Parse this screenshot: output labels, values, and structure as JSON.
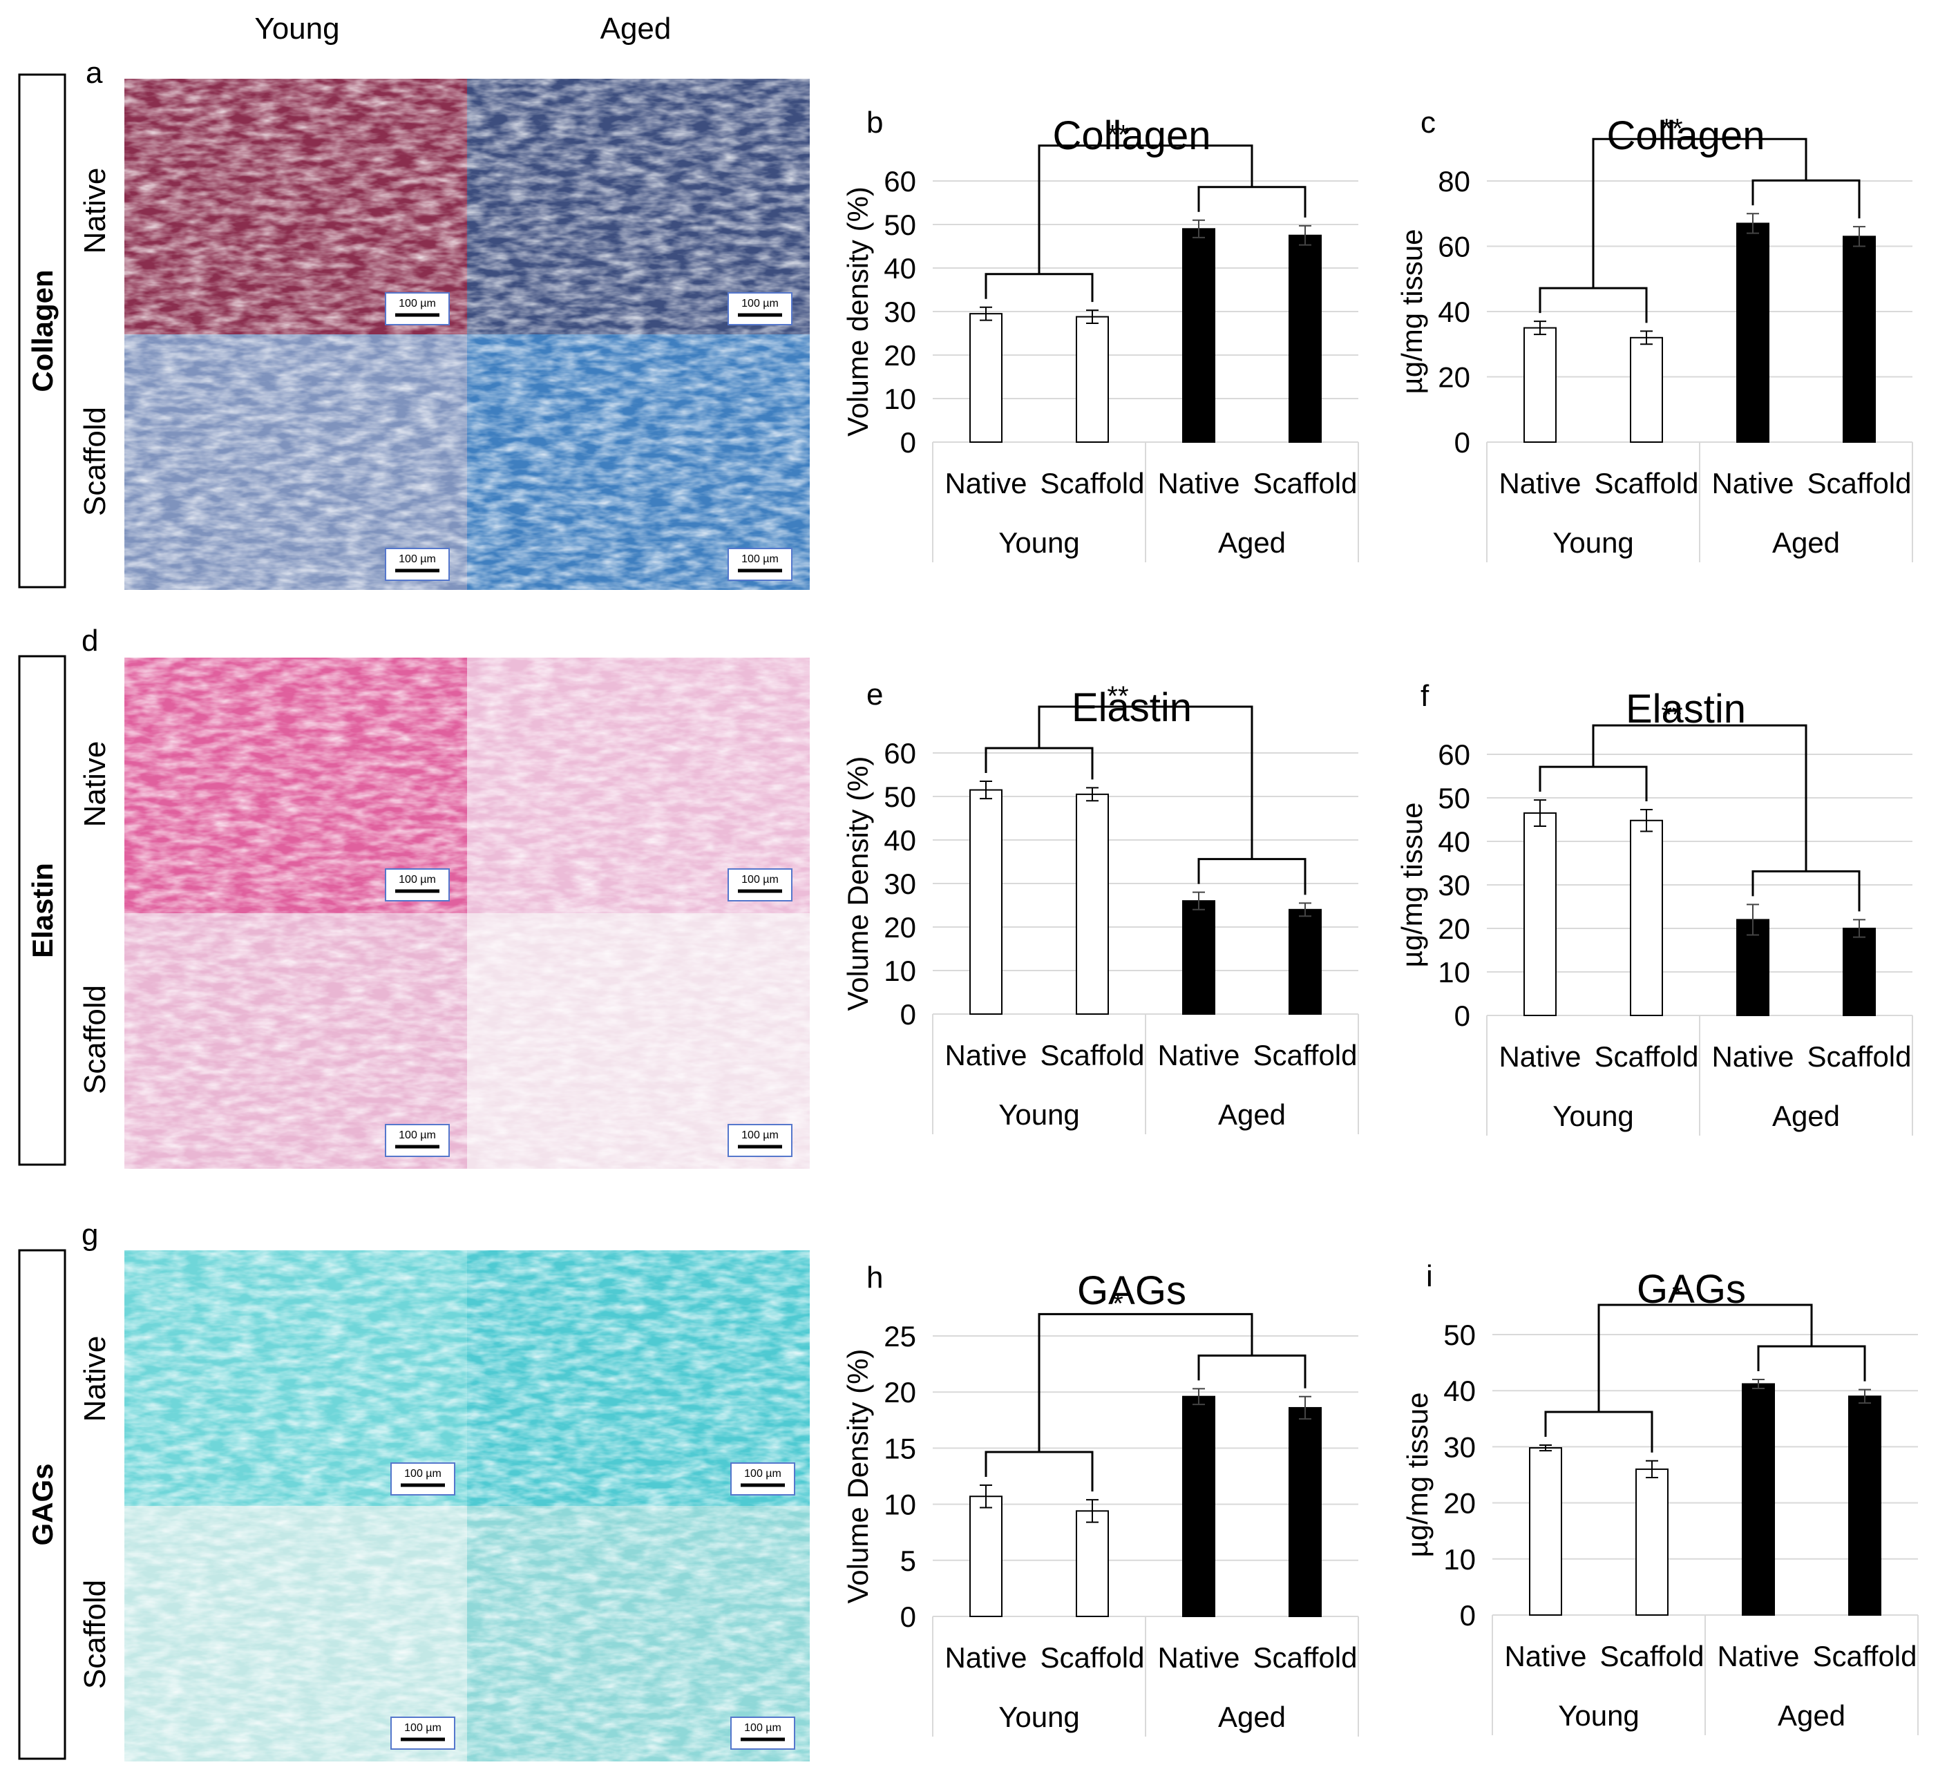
{
  "column_headers": [
    "Young",
    "Aged"
  ],
  "row_headers": [
    "Native",
    "Scaffold"
  ],
  "scale_bar_label": "100 µm",
  "stain_panels": [
    {
      "letter": "a",
      "section": "Collagen",
      "colors": [
        "#8a2e4e",
        "#3d4e7e",
        "#7f93bd",
        "#3f7fc0"
      ]
    },
    {
      "letter": "d",
      "section": "Elastin",
      "colors": [
        "#e0609e",
        "#ecbcd8",
        "#e9b6d3",
        "#f3e3ec"
      ]
    },
    {
      "letter": "g",
      "section": "GAGs",
      "colors": [
        "#6fd6d9",
        "#4fcad2",
        "#c3e8e6",
        "#8fd8d8"
      ]
    }
  ],
  "chart_data": [
    {
      "letter": "b",
      "type": "bar",
      "title": "Collagen",
      "ylabel": "Volume density  (%)",
      "ylim": [
        0,
        60
      ],
      "yticks": [
        0,
        10,
        20,
        30,
        40,
        50,
        60
      ],
      "categories": [
        "Native",
        "Scaffold",
        "Native",
        "Scaffold"
      ],
      "groups": [
        "Young",
        "Aged"
      ],
      "values": [
        29.5,
        28.8,
        49,
        47.5
      ],
      "errors": [
        1.5,
        1.5,
        2,
        2.2
      ],
      "significance": "**"
    },
    {
      "letter": "c",
      "type": "bar",
      "title": "Collagen",
      "ylabel": "µg/mg tissue",
      "ylim": [
        0,
        80
      ],
      "yticks": [
        0,
        20,
        40,
        60,
        80
      ],
      "categories": [
        "Native",
        "Scaffold",
        "Native",
        "Scaffold"
      ],
      "groups": [
        "Young",
        "Aged"
      ],
      "values": [
        35,
        32,
        67,
        63
      ],
      "errors": [
        2,
        2,
        3,
        3
      ],
      "significance": "**"
    },
    {
      "letter": "e",
      "type": "bar",
      "title": "Elastin",
      "ylabel": "Volume Density (%)",
      "ylim": [
        0,
        60
      ],
      "yticks": [
        0,
        10,
        20,
        30,
        40,
        50,
        60
      ],
      "categories": [
        "Native",
        "Scaffold",
        "Native",
        "Scaffold"
      ],
      "groups": [
        "Young",
        "Aged"
      ],
      "values": [
        51.5,
        50.5,
        26,
        24
      ],
      "errors": [
        2,
        1.5,
        2,
        1.5
      ],
      "significance": "**"
    },
    {
      "letter": "f",
      "type": "bar",
      "title": "Elastin",
      "ylabel": "µg/mg tissue",
      "ylim": [
        0,
        60
      ],
      "yticks": [
        0,
        10,
        20,
        30,
        40,
        50,
        60
      ],
      "categories": [
        "Native",
        "Scaffold",
        "Native",
        "Scaffold"
      ],
      "groups": [
        "Young",
        "Aged"
      ],
      "values": [
        46.5,
        44.8,
        22,
        20
      ],
      "errors": [
        3,
        2.5,
        3.5,
        2
      ],
      "significance": "**"
    },
    {
      "letter": "h",
      "type": "bar",
      "title": "GAGs",
      "ylabel": "Volume Density (%)",
      "ylim": [
        0,
        25
      ],
      "yticks": [
        0,
        5,
        10,
        15,
        20,
        25
      ],
      "categories": [
        "Native",
        "Scaffold",
        "Native",
        "Scaffold"
      ],
      "groups": [
        "Young",
        "Aged"
      ],
      "values": [
        10.7,
        9.4,
        19.6,
        18.6
      ],
      "errors": [
        1,
        1,
        0.7,
        1
      ],
      "significance": "*"
    },
    {
      "letter": "i",
      "type": "bar",
      "title": "GAGs",
      "ylabel": "µg/mg tissue",
      "ylim": [
        0,
        50
      ],
      "yticks": [
        0,
        10,
        20,
        30,
        40,
        50
      ],
      "categories": [
        "Native",
        "Scaffold",
        "Native",
        "Scaffold"
      ],
      "groups": [
        "Young",
        "Aged"
      ],
      "values": [
        29.8,
        26,
        41.2,
        39
      ],
      "errors": [
        0.5,
        1.5,
        0.8,
        1.2
      ],
      "significance": "*"
    }
  ]
}
